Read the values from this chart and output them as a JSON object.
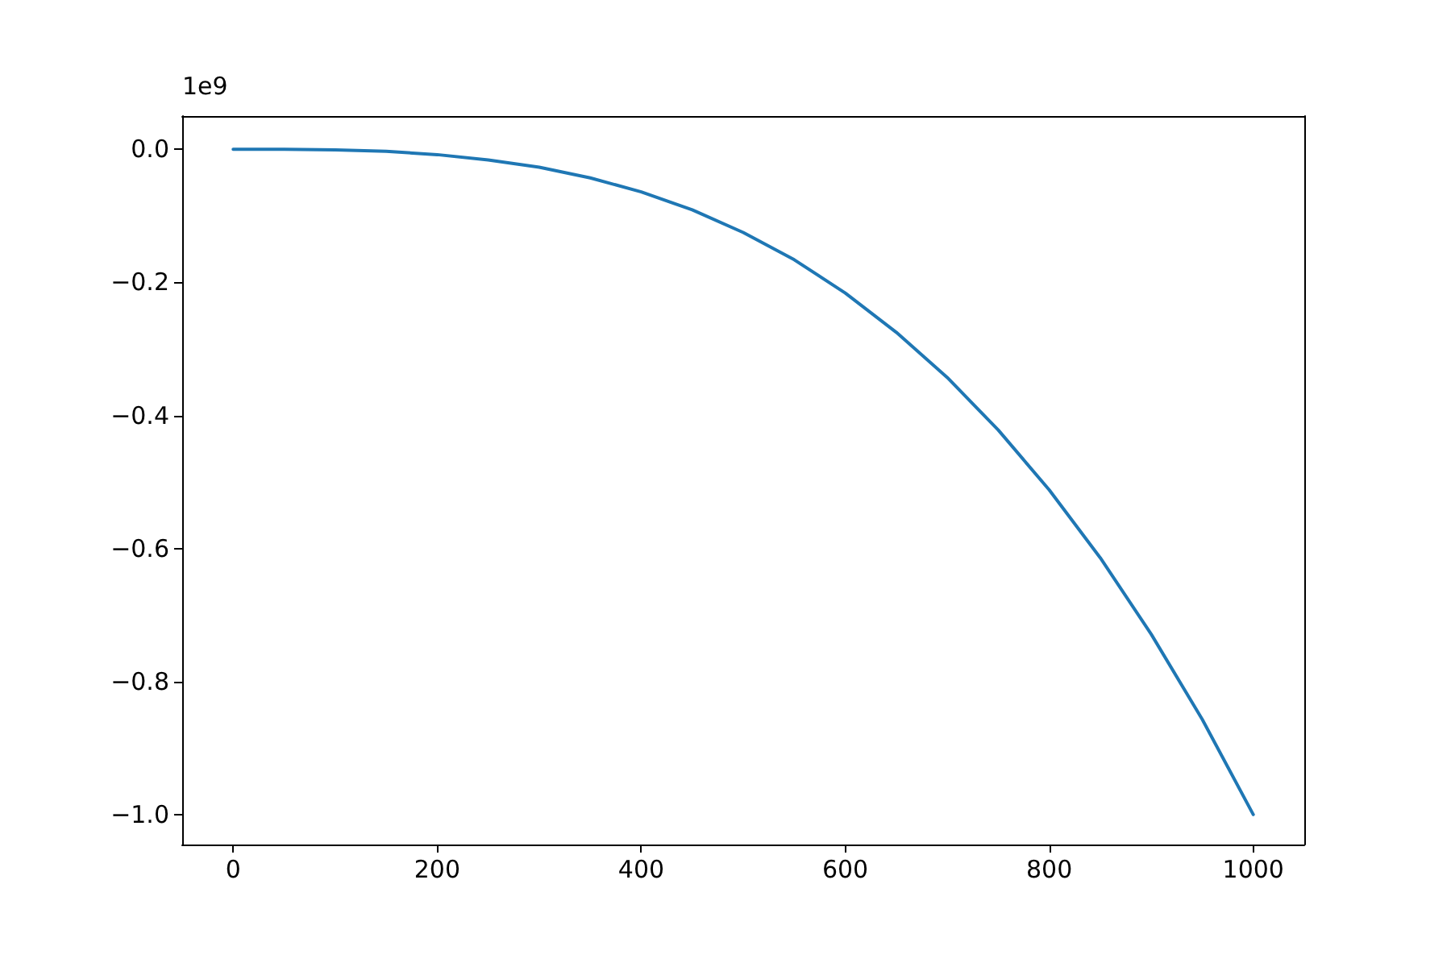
{
  "chart_data": {
    "type": "line",
    "x": [
      0,
      50,
      100,
      150,
      200,
      250,
      300,
      350,
      400,
      450,
      500,
      550,
      600,
      650,
      700,
      750,
      800,
      850,
      900,
      950,
      1000
    ],
    "series": [
      {
        "color": "#1f77b4",
        "values": [
          0,
          0,
          -0.001,
          -0.003,
          -0.008,
          -0.016,
          -0.027,
          -0.043,
          -0.064,
          -0.091,
          -0.125,
          -0.166,
          -0.216,
          -0.275,
          -0.343,
          -0.422,
          -0.512,
          -0.614,
          -0.729,
          -0.857,
          -1.0
        ]
      }
    ],
    "xlim": [
      -50,
      1050
    ],
    "xticks": [
      0,
      200,
      400,
      600,
      800,
      1000
    ],
    "ylim": [
      -1.045,
      0.05
    ],
    "yticks": [
      {
        "value": 0,
        "label": "0.0"
      },
      {
        "value": -0.2,
        "label": "−0.2"
      },
      {
        "value": -0.4,
        "label": "−0.4"
      },
      {
        "value": -0.6,
        "label": "−0.6"
      },
      {
        "value": -0.8,
        "label": "−0.8"
      },
      {
        "value": -1.0,
        "label": "−1.0"
      }
    ],
    "annotations": [
      "1e9"
    ],
    "grid": false,
    "marker": "none",
    "line_style": "solid"
  }
}
